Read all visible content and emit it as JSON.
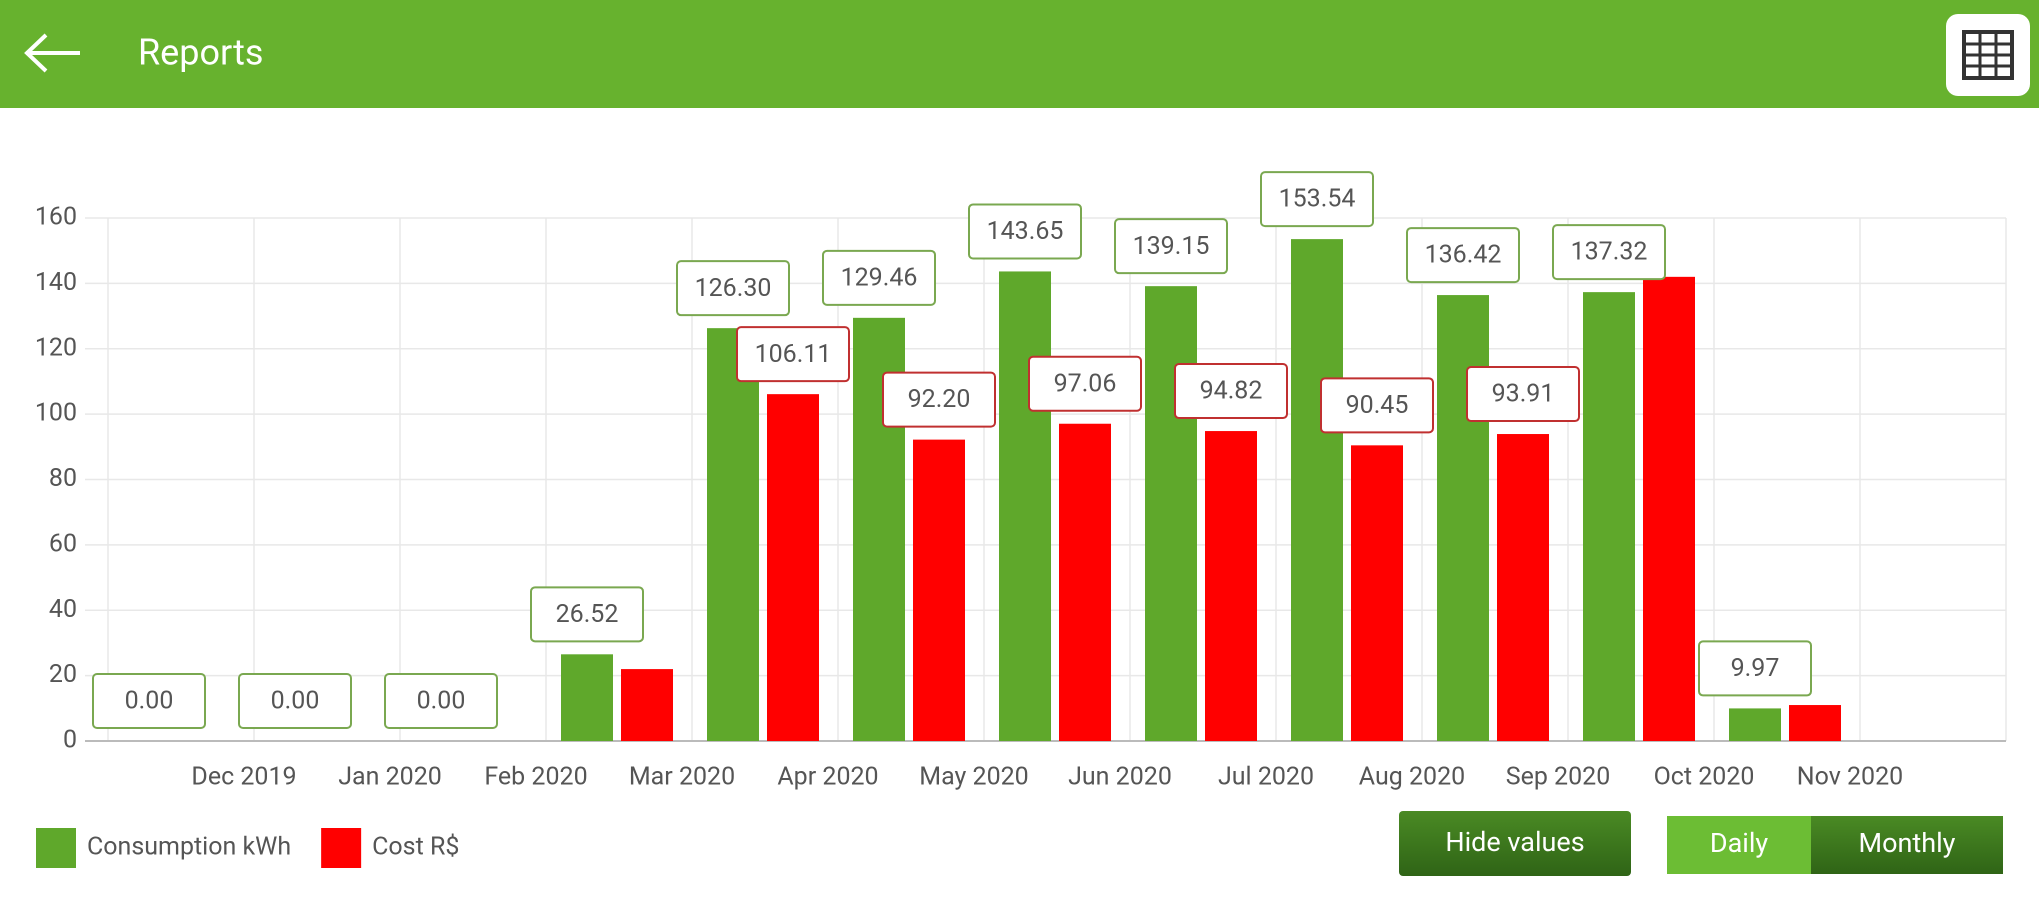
{
  "header": {
    "title": "Reports"
  },
  "chart_data": {
    "type": "bar",
    "categories": [
      "Dec 2019",
      "Jan 2020",
      "Feb 2020",
      "Mar 2020",
      "Apr 2020",
      "May 2020",
      "Jun 2020",
      "Jul 2020",
      "Aug 2020",
      "Sep 2020",
      "Oct 2020",
      "Nov 2020"
    ],
    "series": [
      {
        "name": "Consumption kWh",
        "color": "#5fa82b",
        "values": [
          0,
          0,
          0,
          26.52,
          126.3,
          129.46,
          143.65,
          139.15,
          153.54,
          136.42,
          137.32,
          9.97
        ],
        "value_labels": [
          "0.00",
          "0.00",
          "0.00",
          "26.52",
          "126.30",
          "129.46",
          "143.65",
          "139.15",
          "153.54",
          "136.42",
          "137.32",
          "9.97"
        ]
      },
      {
        "name": "Cost R$",
        "color": "#ff0000",
        "values": [
          0,
          0,
          0,
          22,
          106.11,
          92.2,
          97.06,
          94.82,
          90.45,
          93.91,
          142,
          11
        ],
        "value_labels": [
          null,
          null,
          null,
          null,
          "106.11",
          "92.20",
          "97.06",
          "94.82",
          "90.45",
          "93.91",
          null,
          null
        ]
      }
    ],
    "ylim": [
      0,
      160
    ],
    "yticks": [
      0,
      20,
      40,
      60,
      80,
      100,
      120,
      140,
      160
    ],
    "grid": true
  },
  "controls": {
    "hide_values": "Hide values",
    "daily": "Daily",
    "monthly": "Monthly"
  }
}
